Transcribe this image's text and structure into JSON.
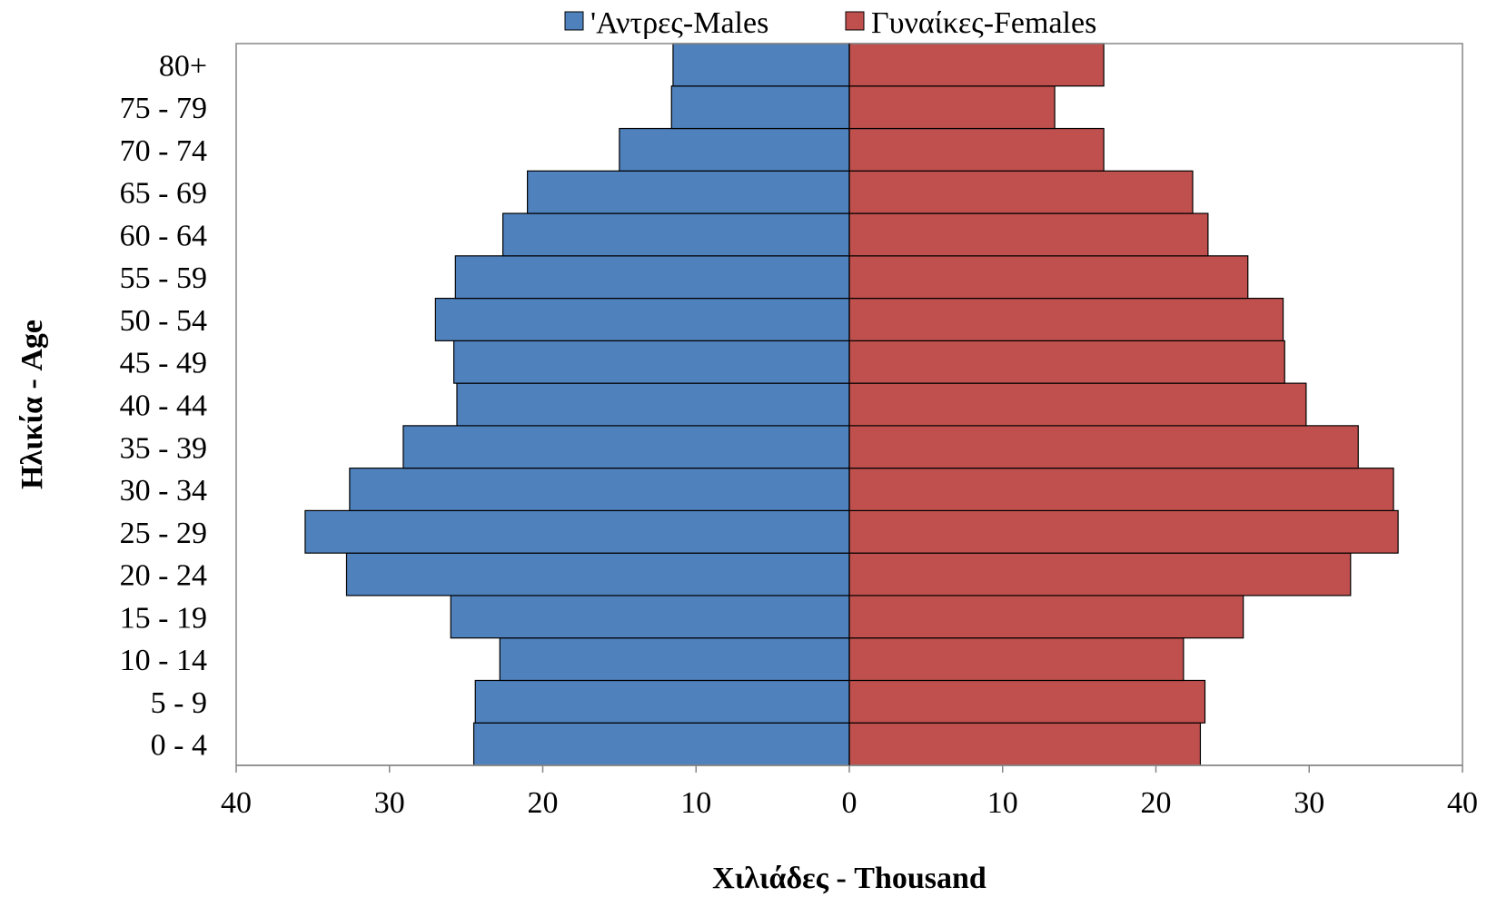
{
  "chart_data": {
    "type": "bar",
    "orientation": "horizontal",
    "subtype": "population-pyramid",
    "categories": [
      "0 -  4",
      "5 -  9",
      "10 - 14",
      "15 - 19",
      "20 - 24",
      "25 - 29",
      "30 - 34",
      "35 - 39",
      "40 - 44",
      "45 - 49",
      "50 - 54",
      "55 - 59",
      "60 - 64",
      "65 - 69",
      "70 - 74",
      "75 - 79",
      "80+"
    ],
    "series": [
      {
        "name": "'Αντρες-Males",
        "color": "#4F81BD",
        "side": "left",
        "values": [
          24.5,
          24.4,
          22.8,
          26.0,
          32.8,
          35.5,
          32.6,
          29.1,
          25.6,
          25.8,
          27.0,
          25.7,
          22.6,
          21.0,
          15.0,
          11.6,
          11.5
        ]
      },
      {
        "name": "Γυναίκες-Females",
        "color": "#C0504D",
        "side": "right",
        "values": [
          22.9,
          23.2,
          21.8,
          25.7,
          32.7,
          35.8,
          35.5,
          33.2,
          29.8,
          28.4,
          28.3,
          26.0,
          23.4,
          22.4,
          16.6,
          13.4,
          16.6
        ]
      }
    ],
    "xlabel": "Χιλιάδες - Thousand",
    "ylabel": "Ηλικία - Age",
    "xlim": [
      -40,
      40
    ],
    "xticks": [
      -40,
      -30,
      -20,
      -10,
      0,
      10,
      20,
      30,
      40
    ],
    "xtick_labels": [
      "40",
      "30",
      "20",
      "10",
      "0",
      "10",
      "20",
      "30",
      "40"
    ],
    "grid": false,
    "legend_position": "top-center"
  }
}
